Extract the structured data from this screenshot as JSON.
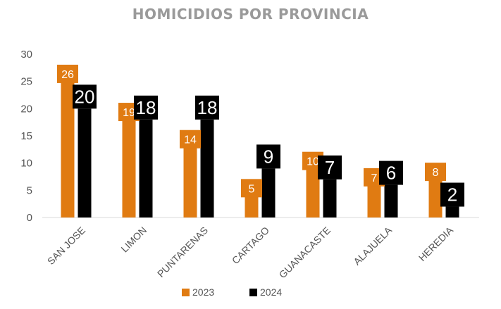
{
  "chart_data": {
    "type": "bar",
    "title": "HOMICIDIOS POR PROVINCIA",
    "categories": [
      "SAN JOSE",
      "LIMON",
      "PUNTARENAS",
      "CARTAGO",
      "GUANACASTE",
      "ALAJUELA",
      "HEREDIA"
    ],
    "series": [
      {
        "name": "2023",
        "values": [
          26,
          19,
          14,
          5,
          10,
          7,
          8
        ],
        "color": "#e07b12"
      },
      {
        "name": "2024",
        "values": [
          20,
          18,
          18,
          9,
          7,
          6,
          2
        ],
        "color": "#000000"
      }
    ],
    "y_ticks": [
      "0",
      "5",
      "10",
      "15",
      "20",
      "25",
      "30"
    ],
    "ylim": [
      0,
      30
    ],
    "grid": false,
    "legend_position": "bottom"
  }
}
